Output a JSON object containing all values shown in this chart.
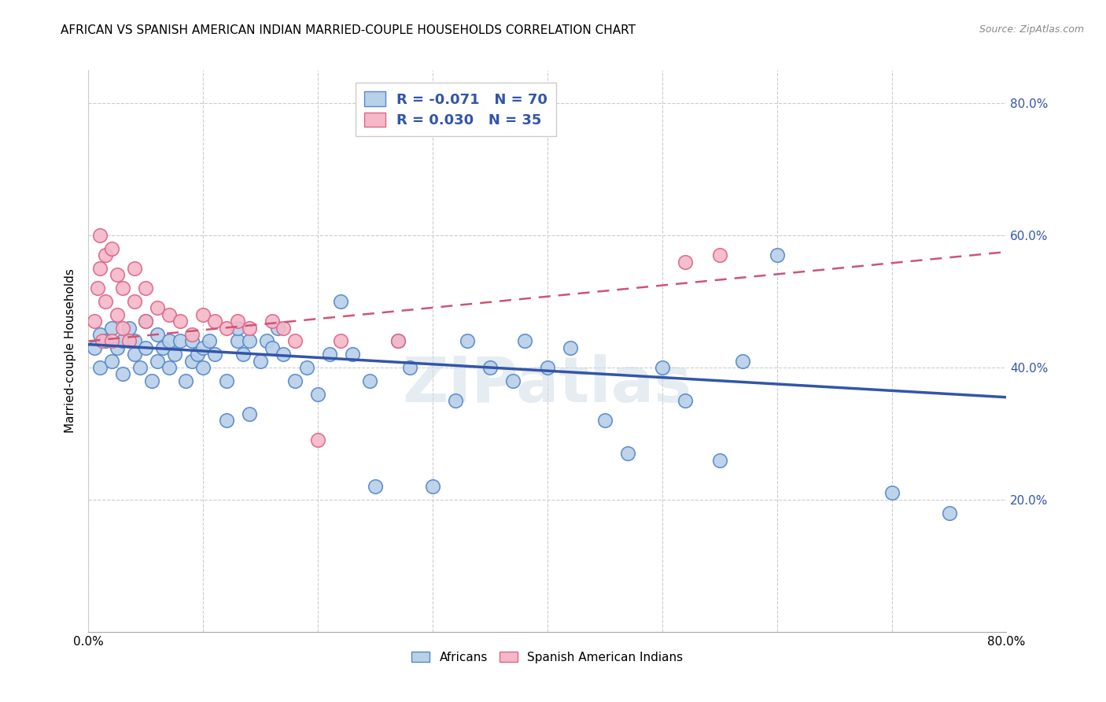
{
  "title": "AFRICAN VS SPANISH AMERICAN INDIAN MARRIED-COUPLE HOUSEHOLDS CORRELATION CHART",
  "source": "Source: ZipAtlas.com",
  "ylabel": "Married-couple Households",
  "xlim": [
    0.0,
    0.8
  ],
  "ylim": [
    0.0,
    0.85
  ],
  "x_ticks_show": [
    0.0,
    0.8
  ],
  "y_ticks_right": [
    0.2,
    0.4,
    0.6,
    0.8
  ],
  "y_ticks_grid": [
    0.2,
    0.4,
    0.6,
    0.8
  ],
  "x_ticks_grid": [
    0.0,
    0.1,
    0.2,
    0.3,
    0.4,
    0.5,
    0.6,
    0.7,
    0.8
  ],
  "legend_r_blue": "-0.071",
  "legend_n_blue": "70",
  "legend_r_pink": "0.030",
  "legend_n_pink": "35",
  "blue_fill_color": "#b8d0e8",
  "pink_fill_color": "#f4b8c8",
  "blue_edge_color": "#5588cc",
  "pink_edge_color": "#dd6688",
  "blue_trend_color": "#3355aa",
  "pink_trend_color": "#cc5577",
  "watermark": "ZIPatlas",
  "africans_x": [
    0.005,
    0.01,
    0.01,
    0.015,
    0.02,
    0.02,
    0.025,
    0.03,
    0.03,
    0.035,
    0.04,
    0.04,
    0.045,
    0.05,
    0.05,
    0.055,
    0.06,
    0.06,
    0.065,
    0.07,
    0.07,
    0.075,
    0.08,
    0.085,
    0.09,
    0.09,
    0.095,
    0.1,
    0.1,
    0.105,
    0.11,
    0.12,
    0.12,
    0.13,
    0.13,
    0.135,
    0.14,
    0.14,
    0.15,
    0.155,
    0.16,
    0.165,
    0.17,
    0.18,
    0.19,
    0.2,
    0.21,
    0.22,
    0.23,
    0.245,
    0.25,
    0.27,
    0.28,
    0.3,
    0.32,
    0.33,
    0.35,
    0.37,
    0.38,
    0.4,
    0.42,
    0.45,
    0.47,
    0.5,
    0.52,
    0.55,
    0.57,
    0.6,
    0.7,
    0.75
  ],
  "africans_y": [
    0.43,
    0.45,
    0.4,
    0.44,
    0.46,
    0.41,
    0.43,
    0.44,
    0.39,
    0.46,
    0.42,
    0.44,
    0.4,
    0.43,
    0.47,
    0.38,
    0.41,
    0.45,
    0.43,
    0.4,
    0.44,
    0.42,
    0.44,
    0.38,
    0.41,
    0.44,
    0.42,
    0.43,
    0.4,
    0.44,
    0.42,
    0.32,
    0.38,
    0.44,
    0.46,
    0.42,
    0.33,
    0.44,
    0.41,
    0.44,
    0.43,
    0.46,
    0.42,
    0.38,
    0.4,
    0.36,
    0.42,
    0.5,
    0.42,
    0.38,
    0.22,
    0.44,
    0.4,
    0.22,
    0.35,
    0.44,
    0.4,
    0.38,
    0.44,
    0.4,
    0.43,
    0.32,
    0.27,
    0.4,
    0.35,
    0.26,
    0.41,
    0.57,
    0.21,
    0.18
  ],
  "spanish_x": [
    0.005,
    0.008,
    0.01,
    0.01,
    0.012,
    0.015,
    0.015,
    0.02,
    0.02,
    0.025,
    0.025,
    0.03,
    0.03,
    0.035,
    0.04,
    0.04,
    0.05,
    0.05,
    0.06,
    0.07,
    0.08,
    0.09,
    0.1,
    0.11,
    0.12,
    0.13,
    0.14,
    0.16,
    0.17,
    0.18,
    0.2,
    0.22,
    0.27,
    0.52,
    0.55
  ],
  "spanish_y": [
    0.47,
    0.52,
    0.55,
    0.6,
    0.44,
    0.5,
    0.57,
    0.44,
    0.58,
    0.48,
    0.54,
    0.46,
    0.52,
    0.44,
    0.5,
    0.55,
    0.47,
    0.52,
    0.49,
    0.48,
    0.47,
    0.45,
    0.48,
    0.47,
    0.46,
    0.47,
    0.46,
    0.47,
    0.46,
    0.44,
    0.29,
    0.44,
    0.44,
    0.56,
    0.57
  ],
  "blue_trend_x": [
    0.0,
    0.8
  ],
  "blue_trend_y": [
    0.435,
    0.355
  ],
  "pink_trend_x": [
    0.0,
    0.8
  ],
  "pink_trend_y": [
    0.44,
    0.575
  ]
}
